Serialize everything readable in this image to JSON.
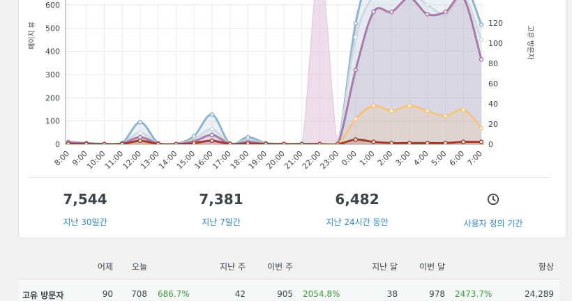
{
  "chart_data": {
    "type": "area",
    "ylabel_left": "페이지 뷰",
    "ylabel_right": "고유 방문자",
    "y_left_ticks": [
      0,
      100,
      200,
      300,
      400,
      500,
      600
    ],
    "y_right_ticks": [
      0,
      20,
      40,
      60,
      80,
      100,
      120
    ],
    "categories": [
      "8:00",
      "9:00",
      "10:00",
      "11:00",
      "12:00",
      "13:00",
      "14:00",
      "15:00",
      "16:00",
      "17:00",
      "18:00",
      "19:00",
      "20:00",
      "21:00",
      "22:00",
      "23:00",
      "0:00",
      "1:00",
      "2:00",
      "3:00",
      "4:00",
      "5:00",
      "6:00",
      "7:00"
    ],
    "series": [
      {
        "color": "#8fb3cc",
        "values": [
          10,
          5,
          2,
          5,
          95,
          5,
          2,
          35,
          128,
          3,
          30,
          5,
          2,
          1,
          2,
          1,
          520,
          850,
          880,
          850,
          700,
          650,
          700,
          515
        ]
      },
      {
        "color": "#cfd9df",
        "values": [
          6,
          3,
          1,
          3,
          50,
          3,
          1,
          20,
          65,
          2,
          18,
          3,
          1,
          1,
          1,
          1,
          460,
          640,
          690,
          660,
          600,
          560,
          640,
          450
        ]
      },
      {
        "color": "#a879a9",
        "values": [
          8,
          4,
          1,
          4,
          30,
          3,
          1,
          12,
          40,
          2,
          10,
          2,
          1,
          1,
          1,
          1,
          320,
          570,
          570,
          630,
          560,
          570,
          630,
          365
        ]
      },
      {
        "color": "#a33c2c",
        "values": [
          2,
          1,
          0,
          1,
          15,
          1,
          0,
          5,
          15,
          1,
          3,
          1,
          0,
          0,
          0,
          0,
          20,
          10,
          5,
          5,
          5,
          5,
          10,
          10
        ]
      },
      {
        "color": "#dfc7d8",
        "values": [
          0,
          0,
          0,
          0,
          0,
          0,
          0,
          0,
          0,
          0,
          0,
          0,
          0,
          0,
          900,
          0,
          0,
          0,
          0,
          0,
          0,
          0,
          0,
          0
        ]
      },
      {
        "color": "#f5c37a",
        "values": [
          0,
          0,
          0,
          0,
          0,
          0,
          0,
          0,
          0,
          0,
          0,
          0,
          0,
          0,
          0,
          0,
          25,
          38,
          33,
          38,
          33,
          28,
          34,
          16
        ],
        "axis": "right"
      }
    ]
  },
  "stats": [
    {
      "value": "7,544",
      "label": "지난 30일간"
    },
    {
      "value": "7,381",
      "label": "지난 7일간"
    },
    {
      "value": "6,482",
      "label": "지난 24시간 동안"
    },
    {
      "label": "사용자 정의 기간"
    }
  ],
  "table": {
    "headers": [
      "어제",
      "오늘",
      "지난 주",
      "이번 주",
      "지난 달",
      "이번 달",
      "항상"
    ],
    "row": {
      "label": "고유 방문자",
      "yesterday": "90",
      "today": "708",
      "today_pct": "686.7%",
      "last_week": "42",
      "this_week": "905",
      "week_pct": "2054.8%",
      "last_month": "38",
      "this_month": "978",
      "month_pct": "2473.7%",
      "always": "24,289"
    }
  }
}
